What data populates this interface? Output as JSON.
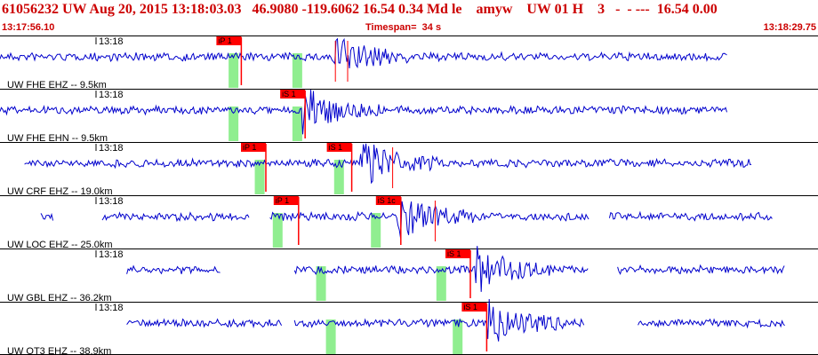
{
  "header": {
    "title": "61056232 UW Aug 20, 2015 13:18:03.03   46.9080 -119.6062 16.54 0.34 Md le    amyw    UW 01 H    3   -  - ---  16.54 0.00",
    "time_start": "13:17:56.10",
    "timespan": "Timespan=  34 s",
    "time_end": "13:18:29.75"
  },
  "colors": {
    "trace": "#0000cc",
    "pick": "#ff0000",
    "window": "#90ee90",
    "header_text": "#cc0000",
    "separator": "#000000"
  },
  "traces": [
    {
      "id": "trace-uw-fhe-ehz",
      "time_label": "13:18",
      "station_label": "UW FHE EHZ -- 9.5km",
      "segments": [
        [
          0.0,
          0.89
        ]
      ],
      "windows": [
        0.286,
        0.364
      ],
      "picks": [
        {
          "label": "iP 1",
          "t": 0.295
        }
      ],
      "extra_marks": [
        0.41,
        0.425
      ],
      "event": 0.41
    },
    {
      "id": "trace-uw-fhe-ehn",
      "time_label": "13:18",
      "station_label": "UW FHE EHN -- 9.5km",
      "segments": [
        [
          0.0,
          0.89
        ]
      ],
      "windows": [
        0.286,
        0.364
      ],
      "picks": [
        {
          "label": "iS 1",
          "t": 0.373
        }
      ],
      "extra_marks": [],
      "event": 0.375
    },
    {
      "id": "trace-uw-crf-ehz",
      "time_label": "13:18",
      "station_label": "UW CRF EHZ -- 19.0km",
      "segments": [
        [
          0.03,
          0.92
        ]
      ],
      "windows": [
        0.318,
        0.415
      ],
      "picks": [
        {
          "label": "iP 1",
          "t": 0.325
        },
        {
          "label": "iS 1",
          "t": 0.43
        }
      ],
      "extra_marks": [
        0.48
      ],
      "event": 0.445
    },
    {
      "id": "trace-uw-loc-ehz",
      "time_label": "13:18",
      "station_label": "UW LOC EHZ -- 25.0km",
      "segments": [
        [
          0.05,
          0.065
        ],
        [
          0.125,
          0.305
        ],
        [
          0.33,
          0.72
        ],
        [
          0.745,
          0.945
        ]
      ],
      "windows": [
        0.34,
        0.46
      ],
      "picks": [
        {
          "label": "iP 1",
          "t": 0.365
        },
        {
          "label": "iS 1c",
          "t": 0.49
        }
      ],
      "extra_marks": [
        0.532
      ],
      "event": 0.49
    },
    {
      "id": "trace-uw-gbl-ehz",
      "time_label": "13:18",
      "station_label": "UW GBL EHZ -- 36.2km",
      "segments": [
        [
          0.155,
          0.27
        ],
        [
          0.36,
          0.72
        ],
        [
          0.755,
          0.96
        ]
      ],
      "windows": [
        0.393,
        0.54
      ],
      "picks": [
        {
          "label": "iS 1",
          "t": 0.575
        }
      ],
      "extra_marks": [],
      "event": 0.585
    },
    {
      "id": "trace-uw-ot3-ehz",
      "time_label": "13:18",
      "station_label": "UW OT3 EHZ -- 38.9km",
      "segments": [
        [
          0.155,
          0.345
        ],
        [
          0.36,
          0.715
        ],
        [
          0.78,
          0.96
        ]
      ],
      "windows": [
        0.405,
        0.56
      ],
      "picks": [
        {
          "label": "iS 1",
          "t": 0.595
        }
      ],
      "extra_marks": [],
      "event": 0.6
    }
  ]
}
